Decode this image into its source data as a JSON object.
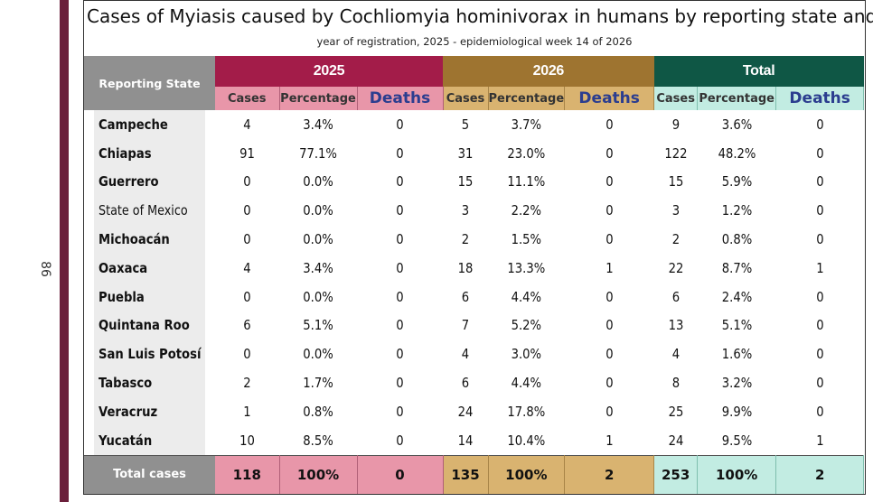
{
  "page_number": "86",
  "title": "Cases of Myiasis caused by Cochliomyia hominivorax in humans by reporting state and",
  "subtitle": "year of registration, 2025 - epidemiological week 14 of 2026",
  "columns": {
    "state": "Reporting State",
    "group_2025": "2025",
    "group_2026": "2026",
    "group_total": "Total",
    "cases": "Cases",
    "percentage": "Percentage",
    "deaths": "Deaths"
  },
  "rows": [
    {
      "state": "Campeche",
      "c25": "4",
      "p25": "3.4%",
      "d25": "0",
      "c26": "5",
      "p26": "3.7%",
      "d26": "0",
      "ct": "9",
      "pt": "3.6%",
      "dt": "0"
    },
    {
      "state": "Chiapas",
      "c25": "91",
      "p25": "77.1%",
      "d25": "0",
      "c26": "31",
      "p26": "23.0%",
      "d26": "0",
      "ct": "122",
      "pt": "48.2%",
      "dt": "0"
    },
    {
      "state": "Guerrero",
      "c25": "0",
      "p25": "0.0%",
      "d25": "0",
      "c26": "15",
      "p26": "11.1%",
      "d26": "0",
      "ct": "15",
      "pt": "5.9%",
      "dt": "0"
    },
    {
      "state": "State of Mexico",
      "c25": "0",
      "p25": "0.0%",
      "d25": "0",
      "c26": "3",
      "p26": "2.2%",
      "d26": "0",
      "ct": "3",
      "pt": "1.2%",
      "dt": "0"
    },
    {
      "state": "Michoacán",
      "c25": "0",
      "p25": "0.0%",
      "d25": "0",
      "c26": "2",
      "p26": "1.5%",
      "d26": "0",
      "ct": "2",
      "pt": "0.8%",
      "dt": "0"
    },
    {
      "state": "Oaxaca",
      "c25": "4",
      "p25": "3.4%",
      "d25": "0",
      "c26": "18",
      "p26": "13.3%",
      "d26": "1",
      "ct": "22",
      "pt": "8.7%",
      "dt": "1"
    },
    {
      "state": "Puebla",
      "c25": "0",
      "p25": "0.0%",
      "d25": "0",
      "c26": "6",
      "p26": "4.4%",
      "d26": "0",
      "ct": "6",
      "pt": "2.4%",
      "dt": "0"
    },
    {
      "state": "Quintana Roo",
      "c25": "6",
      "p25": "5.1%",
      "d25": "0",
      "c26": "7",
      "p26": "5.2%",
      "d26": "0",
      "ct": "13",
      "pt": "5.1%",
      "dt": "0"
    },
    {
      "state": "San Luis Potosí",
      "c25": "0",
      "p25": "0.0%",
      "d25": "0",
      "c26": "4",
      "p26": "3.0%",
      "d26": "0",
      "ct": "4",
      "pt": "1.6%",
      "dt": "0"
    },
    {
      "state": "Tabasco",
      "c25": "2",
      "p25": "1.7%",
      "d25": "0",
      "c26": "6",
      "p26": "4.4%",
      "d26": "0",
      "ct": "8",
      "pt": "3.2%",
      "dt": "0"
    },
    {
      "state": "Veracruz",
      "c25": "1",
      "p25": "0.8%",
      "d25": "0",
      "c26": "24",
      "p26": "17.8%",
      "d26": "0",
      "ct": "25",
      "pt": "9.9%",
      "dt": "0"
    },
    {
      "state": "Yucatán",
      "c25": "10",
      "p25": "8.5%",
      "d25": "0",
      "c26": "14",
      "p26": "10.4%",
      "d26": "1",
      "ct": "24",
      "pt": "9.5%",
      "dt": "1"
    }
  ],
  "totals": {
    "label": "Total cases",
    "c25": "118",
    "p25": "100%",
    "d25": "0",
    "c26": "135",
    "p26": "100%",
    "d26": "2",
    "ct": "253",
    "pt": "100%",
    "dt": "2"
  },
  "colors": {
    "accent_2025": "#a31c49",
    "accent_2026": "#9e7430",
    "accent_total": "#0f5745",
    "side_bar": "#6b1f3b"
  }
}
